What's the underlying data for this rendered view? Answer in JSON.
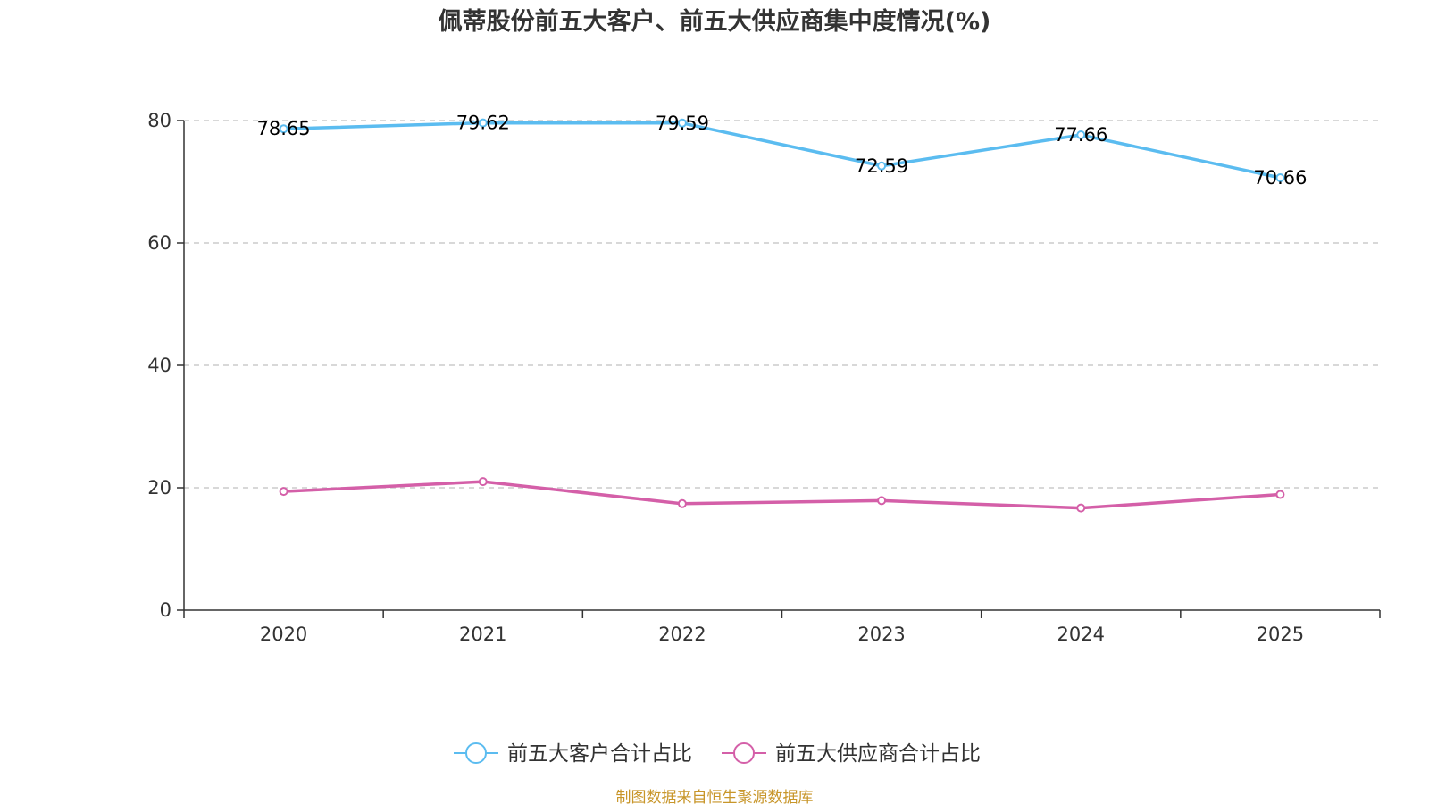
{
  "colors": {
    "series1": "#5bbcf0",
    "series2": "#d45fa8",
    "axis": "#333333",
    "grid": "#cccccc",
    "source": "#c8962a"
  },
  "source_text": "制图数据来自恒生聚源数据库",
  "chart_data": {
    "type": "line",
    "title": "佩蒂股份前五大客户、前五大供应商集中度情况(%)",
    "xlabel": "",
    "ylabel": "",
    "categories": [
      "2020",
      "2021",
      "2022",
      "2023",
      "2024",
      "2025"
    ],
    "ylim": [
      0,
      80
    ],
    "yticks": [
      0,
      20,
      40,
      60,
      80
    ],
    "ytick_labels": [
      "0",
      "20",
      "40",
      "60",
      "80"
    ],
    "grid": true,
    "legend_position": "bottom-center",
    "series": [
      {
        "name": "前五大客户合计占比",
        "color_key": "series1",
        "values": [
          78.65,
          79.62,
          79.59,
          72.59,
          77.66,
          70.66
        ],
        "value_labels": [
          "78.65",
          "79.62",
          "79.59",
          "72.59",
          "77.66",
          "70.66"
        ],
        "show_labels": true
      },
      {
        "name": "前五大供应商合计占比",
        "color_key": "series2",
        "values": [
          19.4,
          21.0,
          17.4,
          17.9,
          16.7,
          18.9
        ],
        "show_labels": false
      }
    ]
  }
}
